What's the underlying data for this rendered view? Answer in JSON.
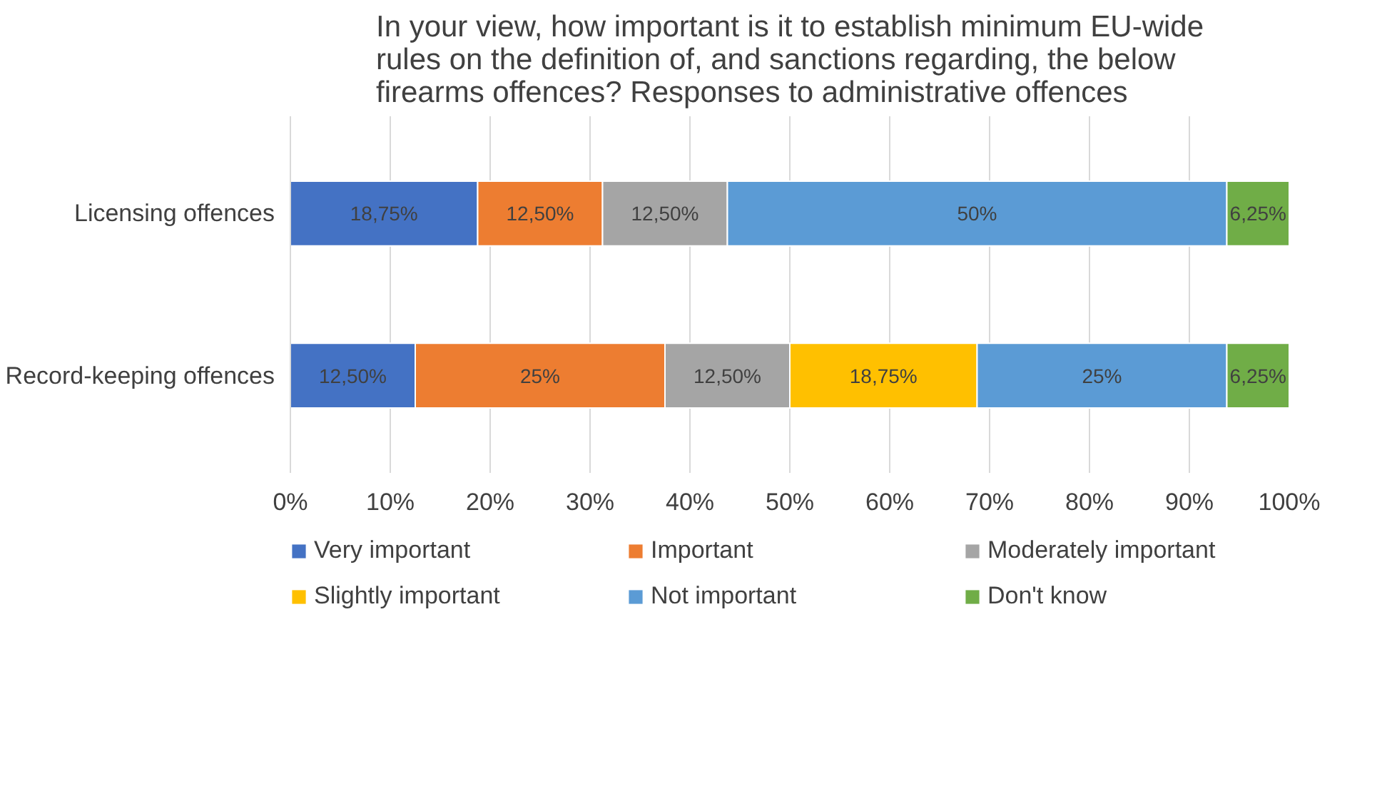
{
  "chart_data": {
    "type": "bar",
    "orientation": "horizontal",
    "stacked": true,
    "title": "In your view, how important is it to establish minimum EU-wide rules on the definition of, and sanctions regarding, the below firearms offences? Responses to administrative offences",
    "categories": [
      "Licensing offences",
      "Record-keeping offences"
    ],
    "series": [
      {
        "name": "Very important",
        "color": "#4472c4",
        "values": [
          18.75,
          12.5
        ],
        "value_labels": [
          "18,75%",
          "12,50%"
        ]
      },
      {
        "name": "Important",
        "color": "#ed7d31",
        "values": [
          12.5,
          25
        ],
        "value_labels": [
          "12,50%",
          "25%"
        ]
      },
      {
        "name": "Moderately important",
        "color": "#a5a5a5",
        "values": [
          12.5,
          12.5
        ],
        "value_labels": [
          "12,50%",
          "12,50%"
        ]
      },
      {
        "name": "Slightly important",
        "color": "#ffc000",
        "values": [
          null,
          18.75
        ],
        "value_labels": [
          null,
          "18,75%"
        ]
      },
      {
        "name": "Not important",
        "color": "#5b9bd5",
        "values": [
          50,
          25
        ],
        "value_labels": [
          "50%",
          "25%"
        ]
      },
      {
        "name": "Don't know",
        "color": "#70ad47",
        "values": [
          6.25,
          6.25
        ],
        "value_labels": [
          "6,25%",
          "6,25%"
        ]
      }
    ],
    "xlim": [
      0,
      100
    ],
    "xticks": [
      {
        "value": 0,
        "label": "0%"
      },
      {
        "value": 10,
        "label": "10%"
      },
      {
        "value": 20,
        "label": "20%"
      },
      {
        "value": 30,
        "label": "30%"
      },
      {
        "value": 40,
        "label": "40%"
      },
      {
        "value": 50,
        "label": "50%"
      },
      {
        "value": 60,
        "label": "60%"
      },
      {
        "value": 70,
        "label": "70%"
      },
      {
        "value": 80,
        "label": "80%"
      },
      {
        "value": 90,
        "label": "90%"
      },
      {
        "value": 100,
        "label": "100%"
      }
    ],
    "grid": "x",
    "legend": "bottom"
  }
}
